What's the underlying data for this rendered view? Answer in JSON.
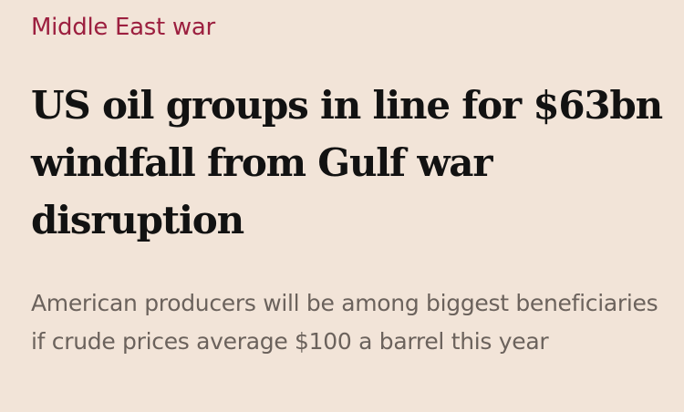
{
  "topic": {
    "label": "Middle East war",
    "color": "#9c1f3f"
  },
  "headline": {
    "text": "US oil groups in line for $63bn windfall from Gulf war disruption"
  },
  "standfirst": {
    "text": "American producers will be among biggest beneficiaries if crude prices average $100 a barrel this year"
  },
  "colors": {
    "background": "#f2e4d8",
    "headline": "#121212",
    "standfirst": "#6b625c"
  }
}
